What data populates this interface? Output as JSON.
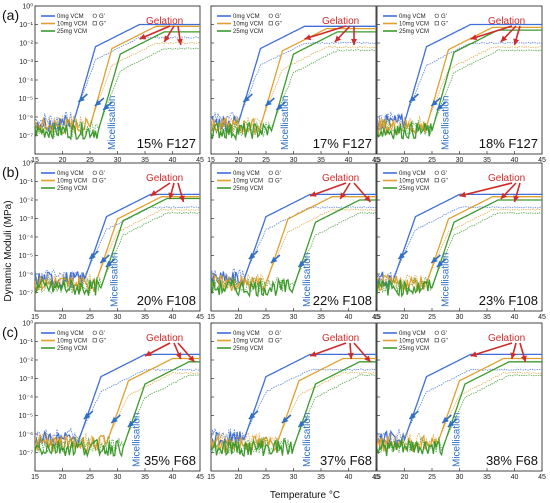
{
  "figure": {
    "ylabel": "Dynamic Moduli (MPa)",
    "xlabel": "Temperature °C",
    "row_labels": [
      "(a)",
      "(b)",
      "(c)"
    ],
    "legend": {
      "series": [
        "0mg VCM",
        "10mg VCM",
        "25mg VCM"
      ],
      "moduli": [
        "G'",
        "G\""
      ]
    },
    "annotations": {
      "gelation": "Gelation",
      "micellisation": "Micellisation"
    },
    "colors": {
      "0mg VCM": "#3f6fd8",
      "10mg VCM": "#e0a030",
      "25mg VCM": "#3c9a2c",
      "gelation_arrow": "#d02a2a",
      "micellisation_arrow": "#2f6fc4"
    }
  },
  "chart_data": [
    {
      "type": "line",
      "panel": "15% F127",
      "xlim": [
        15,
        45
      ],
      "ylim": [
        1e-08,
        1
      ],
      "yscale": "log",
      "x_ticks": [
        15,
        20,
        25,
        30,
        35,
        40,
        45
      ],
      "y_ticks": [
        "10⁻⁷",
        "10⁻⁶",
        "10⁻⁵",
        "10⁻⁴",
        "10⁻³",
        "10⁻²",
        "10⁻¹",
        "10⁰"
      ],
      "micellisation_T": [
        22,
        25,
        26.5
      ],
      "G_prime_plateau": [
        0.1,
        0.08,
        0.04
      ],
      "G_double_prime_plateau": [
        0.02,
        0.01,
        0.005
      ]
    },
    {
      "type": "line",
      "panel": "17% F127",
      "xlim": [
        15,
        45
      ],
      "ylim": [
        1e-08,
        1
      ],
      "yscale": "log",
      "x_ticks": [
        15,
        20,
        25,
        30,
        35,
        40,
        45
      ],
      "y_ticks": [
        "10⁻⁷",
        "10⁻⁶",
        "10⁻⁵",
        "10⁻⁴",
        "10⁻³",
        "10⁻²",
        "10⁻¹",
        "10⁰"
      ],
      "micellisation_T": [
        20,
        24,
        26
      ],
      "G_prime_plateau": [
        0.08,
        0.06,
        0.04
      ],
      "G_double_prime_plateau": [
        0.01,
        0.006,
        0.004
      ]
    },
    {
      "type": "line",
      "panel": "18% F127",
      "xlim": [
        15,
        45
      ],
      "ylim": [
        1e-08,
        1
      ],
      "yscale": "log",
      "x_ticks": [
        15,
        20,
        25,
        30,
        35,
        40,
        45
      ],
      "y_ticks": [
        "10⁻⁷",
        "10⁻⁶",
        "10⁻⁵",
        "10⁻⁴",
        "10⁻³",
        "10⁻²",
        "10⁻¹",
        "10⁰"
      ],
      "micellisation_T": [
        20,
        24,
        25
      ],
      "G_prime_plateau": [
        0.1,
        0.07,
        0.05
      ],
      "G_double_prime_plateau": [
        0.01,
        0.006,
        0.004
      ]
    },
    {
      "type": "line",
      "panel": "20% F108",
      "xlim": [
        15,
        45
      ],
      "ylim": [
        1e-08,
        1
      ],
      "yscale": "log",
      "x_ticks": [
        15,
        20,
        25,
        30,
        35,
        40,
        45
      ],
      "y_ticks": [
        "10⁻⁷",
        "10⁻⁶",
        "10⁻⁵",
        "10⁻⁴",
        "10⁻³",
        "10⁻²",
        "10⁻¹",
        "10⁰"
      ],
      "micellisation_T": [
        24,
        26,
        27
      ],
      "G_prime_plateau": [
        0.02,
        0.015,
        0.012
      ],
      "G_double_prime_plateau": [
        0.004,
        0.003,
        0.002
      ]
    },
    {
      "type": "line",
      "panel": "22% F108",
      "xlim": [
        15,
        45
      ],
      "ylim": [
        1e-08,
        1
      ],
      "yscale": "log",
      "x_ticks": [
        15,
        20,
        25,
        30,
        35,
        40,
        45
      ],
      "y_ticks": [
        "10⁻⁷",
        "10⁻⁶",
        "10⁻⁵",
        "10⁻⁴",
        "10⁻³",
        "10⁻²",
        "10⁻¹",
        "10⁰"
      ],
      "micellisation_T": [
        21,
        25,
        30
      ],
      "G_prime_plateau": [
        0.02,
        0.015,
        0.01
      ],
      "G_double_prime_plateau": [
        0.004,
        0.003,
        0.002
      ]
    },
    {
      "type": "line",
      "panel": "23% F108",
      "xlim": [
        15,
        45
      ],
      "ylim": [
        1e-08,
        1
      ],
      "yscale": "log",
      "x_ticks": [
        15,
        20,
        25,
        30,
        35,
        40,
        45
      ],
      "y_ticks": [
        "10⁻⁷",
        "10⁻⁶",
        "10⁻⁵",
        "10⁻⁴",
        "10⁻³",
        "10⁻²",
        "10⁻¹",
        "10⁰"
      ],
      "micellisation_T": [
        18,
        24,
        25
      ],
      "G_prime_plateau": [
        0.02,
        0.015,
        0.01
      ],
      "G_double_prime_plateau": [
        0.004,
        0.003,
        0.002
      ]
    },
    {
      "type": "line",
      "panel": "35% F68",
      "xlim": [
        15,
        45
      ],
      "ylim": [
        1e-08,
        1
      ],
      "yscale": "log",
      "x_ticks": [
        15,
        20,
        25,
        30,
        35,
        40,
        45
      ],
      "y_ticks": [
        "10⁻⁷",
        "10⁻⁶",
        "10⁻⁵",
        "10⁻⁴",
        "10⁻³",
        "10⁻²",
        "10⁻¹",
        "10⁰"
      ],
      "micellisation_T": [
        23,
        28,
        31
      ],
      "G_prime_plateau": [
        0.02,
        0.012,
        0.008
      ],
      "G_double_prime_plateau": [
        0.003,
        0.002,
        0.0015
      ]
    },
    {
      "type": "line",
      "panel": "37% F68",
      "xlim": [
        15,
        45
      ],
      "ylim": [
        1e-08,
        1
      ],
      "yscale": "log",
      "x_ticks": [
        15,
        20,
        25,
        30,
        35,
        40,
        45
      ],
      "y_ticks": [
        "10⁻⁷",
        "10⁻⁶",
        "10⁻⁵",
        "10⁻⁴",
        "10⁻³",
        "10⁻²",
        "10⁻¹",
        "10⁰"
      ],
      "micellisation_T": [
        21,
        27,
        30
      ],
      "G_prime_plateau": [
        0.02,
        0.012,
        0.008
      ],
      "G_double_prime_plateau": [
        0.003,
        0.002,
        0.0015
      ]
    },
    {
      "type": "line",
      "panel": "38% F68",
      "xlim": [
        15,
        45
      ],
      "ylim": [
        1e-08,
        1
      ],
      "yscale": "log",
      "x_ticks": [
        15,
        20,
        25,
        30,
        35,
        40,
        45
      ],
      "y_ticks": [
        "10⁻⁷",
        "10⁻⁶",
        "10⁻⁵",
        "10⁻⁴",
        "10⁻³",
        "10⁻²",
        "10⁻¹",
        "10⁰"
      ],
      "micellisation_T": [
        20,
        26,
        27
      ],
      "G_prime_plateau": [
        0.02,
        0.012,
        0.008
      ],
      "G_double_prime_plateau": [
        0.003,
        0.002,
        0.0015
      ]
    }
  ]
}
